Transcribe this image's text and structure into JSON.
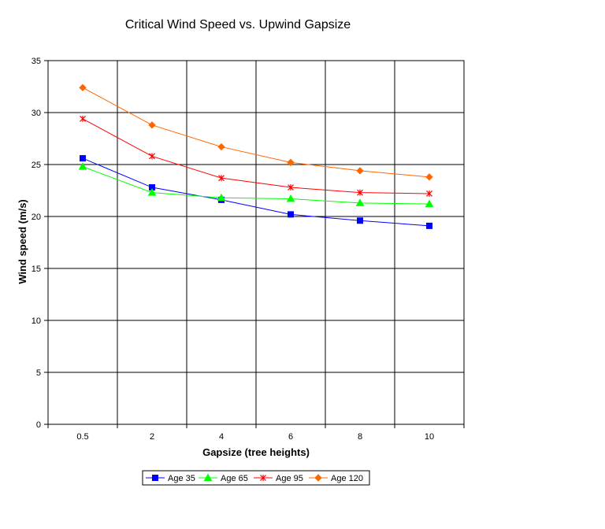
{
  "chart_data": {
    "type": "line",
    "title": "Critical Wind Speed vs. Upwind Gapsize",
    "xlabel": "Gapsize (tree heights)",
    "ylabel": "Wind speed (m/s)",
    "categories": [
      "0.5",
      "2",
      "4",
      "6",
      "8",
      "10"
    ],
    "ylim": [
      0,
      35
    ],
    "yticks": [
      "0",
      "5",
      "10",
      "15",
      "20",
      "25",
      "30",
      "35"
    ],
    "grid": true,
    "legend_position": "bottom",
    "series": [
      {
        "name": "Age 35",
        "color": "#0000ff",
        "marker": "square",
        "values": [
          25.6,
          22.8,
          21.6,
          20.2,
          19.6,
          19.1
        ]
      },
      {
        "name": "Age 65",
        "color": "#00ff00",
        "marker": "triangle",
        "values": [
          24.8,
          22.3,
          21.8,
          21.7,
          21.3,
          21.2
        ]
      },
      {
        "name": "Age 95",
        "color": "#ff0000",
        "marker": "x",
        "values": [
          29.4,
          25.8,
          23.7,
          22.8,
          22.3,
          22.2
        ]
      },
      {
        "name": "Age 120",
        "color": "#ff6600",
        "marker": "diamond",
        "values": [
          32.4,
          28.8,
          26.7,
          25.2,
          24.4,
          23.8
        ]
      }
    ]
  }
}
